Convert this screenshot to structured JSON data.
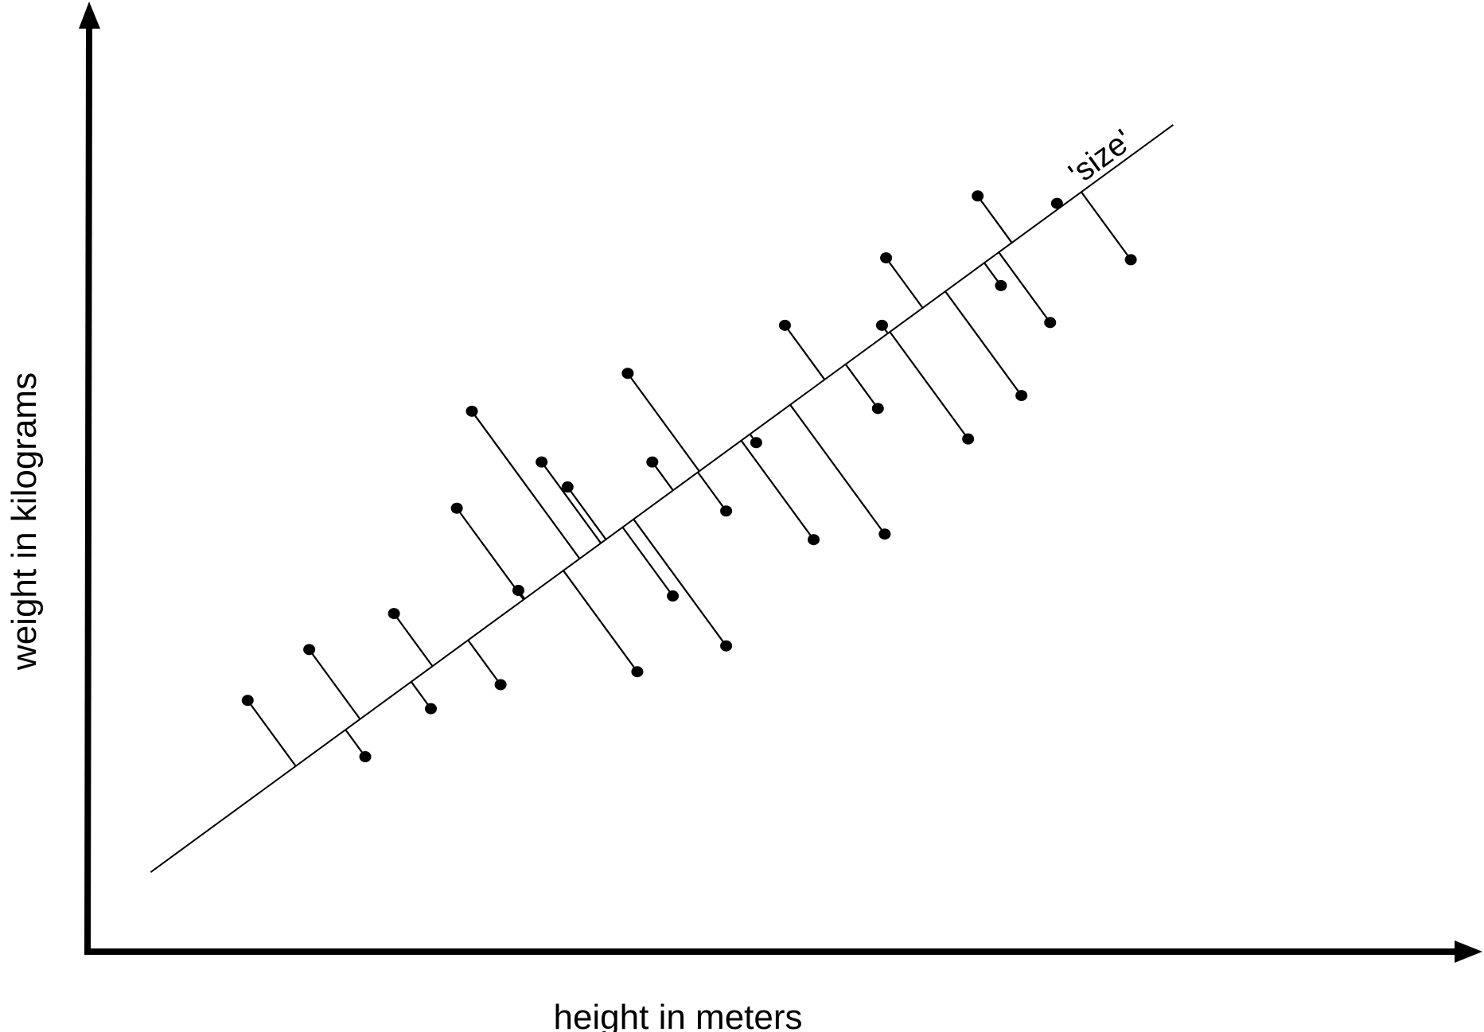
{
  "diagram": {
    "x_axis_label": "height in meters",
    "y_axis_label": "weight in kilograms",
    "fit_line_label": "'size'",
    "ink_color": "#000000",
    "background_color": "#ffffff"
  },
  "chart_data": {
    "type": "scatter",
    "xlabel": "height in meters",
    "ylabel": "weight in kilograms",
    "xlim": [
      0,
      100
    ],
    "ylim": [
      0,
      100
    ],
    "grid": false,
    "fit_line": {
      "label": "'size'",
      "from": [
        4.5,
        8.6
      ],
      "to": [
        79.3,
        89.5
      ]
    },
    "points": [
      {
        "x": 11.6,
        "y": 27.2
      },
      {
        "x": 16.1,
        "y": 32.7
      },
      {
        "x": 20.2,
        "y": 21.1
      },
      {
        "x": 22.3,
        "y": 36.6
      },
      {
        "x": 25.0,
        "y": 26.3
      },
      {
        "x": 30.1,
        "y": 28.9
      },
      {
        "x": 26.9,
        "y": 48.0
      },
      {
        "x": 28.0,
        "y": 58.5
      },
      {
        "x": 31.4,
        "y": 39.1
      },
      {
        "x": 33.1,
        "y": 53.0
      },
      {
        "x": 35.0,
        "y": 50.3
      },
      {
        "x": 42.7,
        "y": 38.5
      },
      {
        "x": 40.1,
        "y": 30.3
      },
      {
        "x": 46.6,
        "y": 33.1
      },
      {
        "x": 39.4,
        "y": 62.6
      },
      {
        "x": 41.2,
        "y": 53.0
      },
      {
        "x": 46.6,
        "y": 47.7
      },
      {
        "x": 48.8,
        "y": 55.1
      },
      {
        "x": 53.0,
        "y": 44.6
      },
      {
        "x": 50.9,
        "y": 67.8
      },
      {
        "x": 57.7,
        "y": 58.8
      },
      {
        "x": 58.2,
        "y": 45.2
      },
      {
        "x": 58.0,
        "y": 67.8
      },
      {
        "x": 64.3,
        "y": 55.5
      },
      {
        "x": 68.2,
        "y": 60.2
      },
      {
        "x": 58.3,
        "y": 75.1
      },
      {
        "x": 66.7,
        "y": 72.1
      },
      {
        "x": 70.3,
        "y": 68.1
      },
      {
        "x": 65.0,
        "y": 81.8
      },
      {
        "x": 70.8,
        "y": 81.0
      },
      {
        "x": 76.2,
        "y": 74.9
      }
    ]
  }
}
